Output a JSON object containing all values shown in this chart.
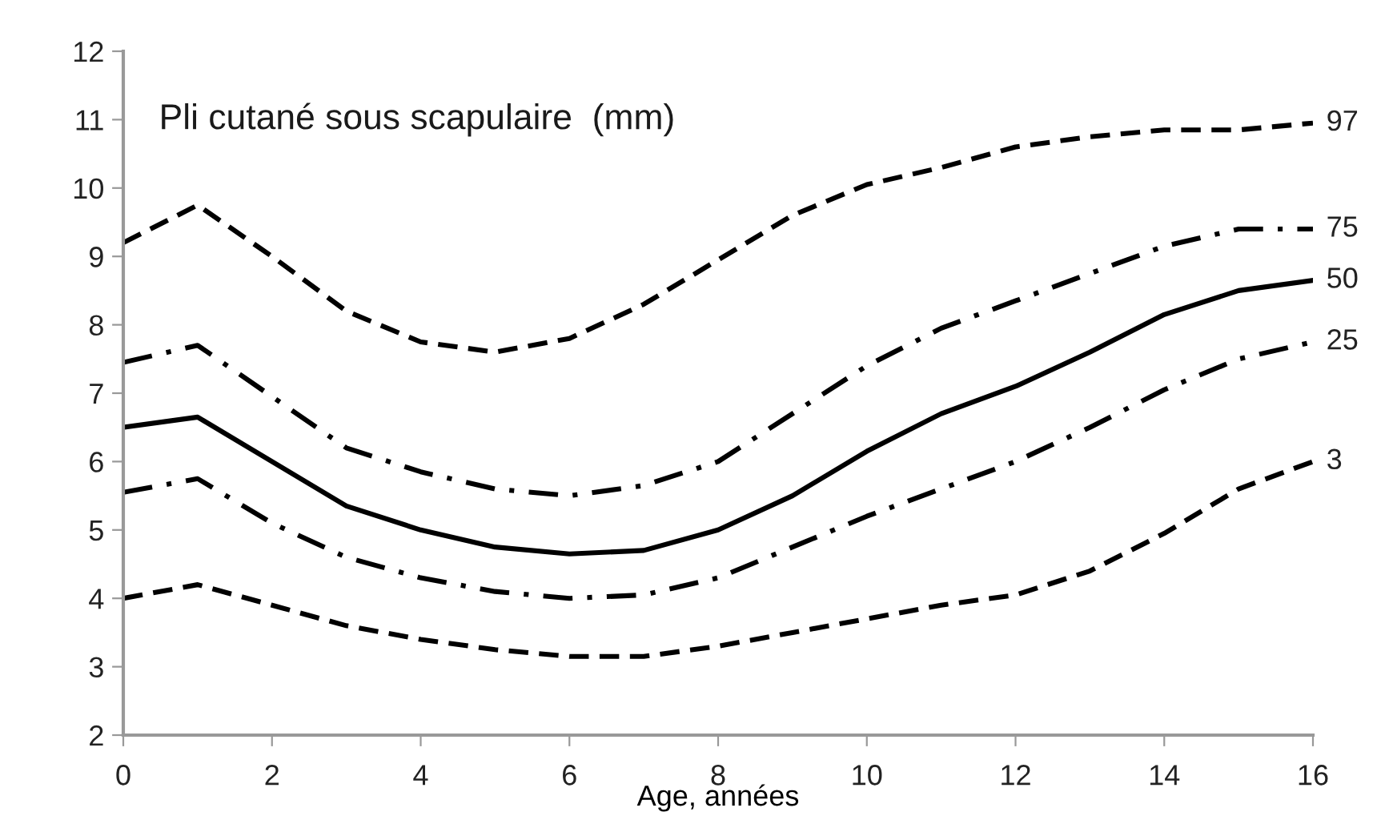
{
  "chart_data": {
    "type": "line",
    "title": "Pli cutané sous scapulaire  (mm)",
    "xlabel": "Age, années",
    "x": [
      0,
      1,
      2,
      3,
      4,
      5,
      6,
      7,
      8,
      9,
      10,
      11,
      12,
      13,
      14,
      15,
      16
    ],
    "series": [
      {
        "name": "97",
        "color": "#000000",
        "line_style": "dashed",
        "values": [
          9.2,
          9.75,
          9.0,
          8.2,
          7.75,
          7.6,
          7.8,
          8.3,
          8.95,
          9.6,
          10.05,
          10.3,
          10.6,
          10.75,
          10.85,
          10.85,
          10.95
        ]
      },
      {
        "name": "75",
        "color": "#000000",
        "line_style": "dashdot",
        "values": [
          7.45,
          7.7,
          6.95,
          6.2,
          5.85,
          5.6,
          5.5,
          5.65,
          6.0,
          6.7,
          7.4,
          7.95,
          8.35,
          8.75,
          9.15,
          9.4,
          9.4
        ]
      },
      {
        "name": "50",
        "color": "#000000",
        "line_style": "solid",
        "values": [
          6.5,
          6.65,
          6.0,
          5.35,
          5.0,
          4.75,
          4.65,
          4.7,
          5.0,
          5.5,
          6.15,
          6.7,
          7.1,
          7.6,
          8.15,
          8.5,
          8.65
        ]
      },
      {
        "name": "25",
        "color": "#000000",
        "line_style": "dashdot",
        "values": [
          5.55,
          5.75,
          5.1,
          4.6,
          4.3,
          4.1,
          4.0,
          4.05,
          4.3,
          4.75,
          5.2,
          5.6,
          6.0,
          6.5,
          7.05,
          7.5,
          7.75
        ]
      },
      {
        "name": "3",
        "color": "#000000",
        "line_style": "dashed",
        "values": [
          4.0,
          4.2,
          3.9,
          3.6,
          3.4,
          3.25,
          3.15,
          3.15,
          3.3,
          3.5,
          3.7,
          3.9,
          4.05,
          4.4,
          4.95,
          5.6,
          6.0
        ]
      }
    ],
    "xlim": [
      0,
      16
    ],
    "xticks": [
      0,
      2,
      4,
      6,
      8,
      10,
      12,
      14,
      16
    ],
    "ylim": [
      2,
      12
    ],
    "yticks": [
      2,
      3,
      4,
      5,
      6,
      7,
      8,
      9,
      10,
      11,
      12
    ],
    "grid": false,
    "legend": false,
    "marker": "none"
  }
}
